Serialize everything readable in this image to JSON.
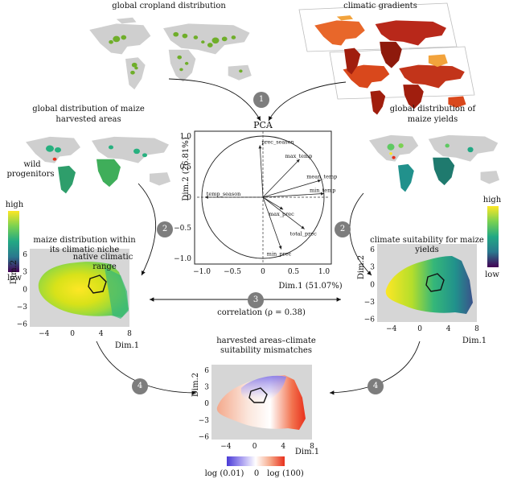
{
  "colors": {
    "land_gray": "#cfcfcf",
    "crop_green": "#6fae2a",
    "heat_dark": "#a01e0e",
    "heat_mid": "#d9481c",
    "heat_light": "#f2a33c",
    "panel_bg": "#d6d6d6",
    "step_circle": "#7d7d7d",
    "viridis_high": "#fde725",
    "viridis_mid": "#21918c",
    "viridis_low": "#440154",
    "div_low": "#4a3bd6",
    "div_high": "#e8301c"
  },
  "top_left_map": {
    "title": "global cropland distribution"
  },
  "top_right_map": {
    "title": "climatic gradients"
  },
  "left_map": {
    "title_line1": "global distribution of maize",
    "title_line2": "harvested areas",
    "annotation_line1": "wild",
    "annotation_line2": "progenitors"
  },
  "right_map": {
    "title_line1": "global distribution of",
    "title_line2": "maize yields"
  },
  "left_legend": {
    "high": "high",
    "low": "low"
  },
  "right_legend": {
    "high": "high",
    "low": "low"
  },
  "pca": {
    "title": "PCA",
    "xlabel": "Dim.1 (51.07%)",
    "ylabel": "Dim.2 (26.81%)",
    "xticks": [
      "−1.0",
      "−0.5",
      "0",
      "0.5",
      "1.0"
    ],
    "yticks": [
      "1.0",
      "0.5",
      "0",
      "−0.5",
      "−1.0"
    ],
    "variables": [
      {
        "name": "prec_season",
        "x": -0.05,
        "y": 0.85
      },
      {
        "name": "max_temp",
        "x": 0.6,
        "y": 0.62
      },
      {
        "name": "mean_temp",
        "x": 0.95,
        "y": 0.28
      },
      {
        "name": "min_temp",
        "x": 1.0,
        "y": 0.06
      },
      {
        "name": "max_prec",
        "x": 0.33,
        "y": -0.2
      },
      {
        "name": "total_prec",
        "x": 0.68,
        "y": -0.52
      },
      {
        "name": "min_prec",
        "x": 0.3,
        "y": -0.85
      },
      {
        "name": "temp_season",
        "x": -0.95,
        "y": 0.0
      }
    ]
  },
  "left_niche": {
    "title_line1": "maize distribution within",
    "title_line2": "its climatic niche",
    "annotation_line1": "native climatic",
    "annotation_line2": "range",
    "xlabel": "Dim.1",
    "ylabel": "Dim.2",
    "xticks": [
      "−4",
      "0",
      "4",
      "8"
    ],
    "yticks": [
      "6",
      "3",
      "0",
      "−3",
      "−6"
    ]
  },
  "right_niche": {
    "title_line1": "climate suitability for maize",
    "title_line2": "yields",
    "xlabel": "Dim.1",
    "ylabel": "Dim.2",
    "xticks": [
      "−4",
      "0",
      "4",
      "8"
    ],
    "yticks": [
      "6",
      "3",
      "0",
      "−3",
      "−6"
    ]
  },
  "bottom_niche": {
    "title_line1": "harvested areas–climate",
    "title_line2": "suitability mismatches",
    "xlabel": "Dim.1",
    "ylabel": "Dim.2",
    "xticks": [
      "−4",
      "0",
      "4",
      "8"
    ],
    "yticks": [
      "6",
      "3",
      "0",
      "−3",
      "−6"
    ],
    "legend_low": "log (0.01)",
    "legend_mid": "0",
    "legend_high": "log (100)"
  },
  "correlation": {
    "label": "correlation (ρ = 0.38)"
  },
  "steps": {
    "s1": "1",
    "s2a": "2",
    "s2b": "2",
    "s3": "3",
    "s4a": "4",
    "s4b": "4"
  }
}
